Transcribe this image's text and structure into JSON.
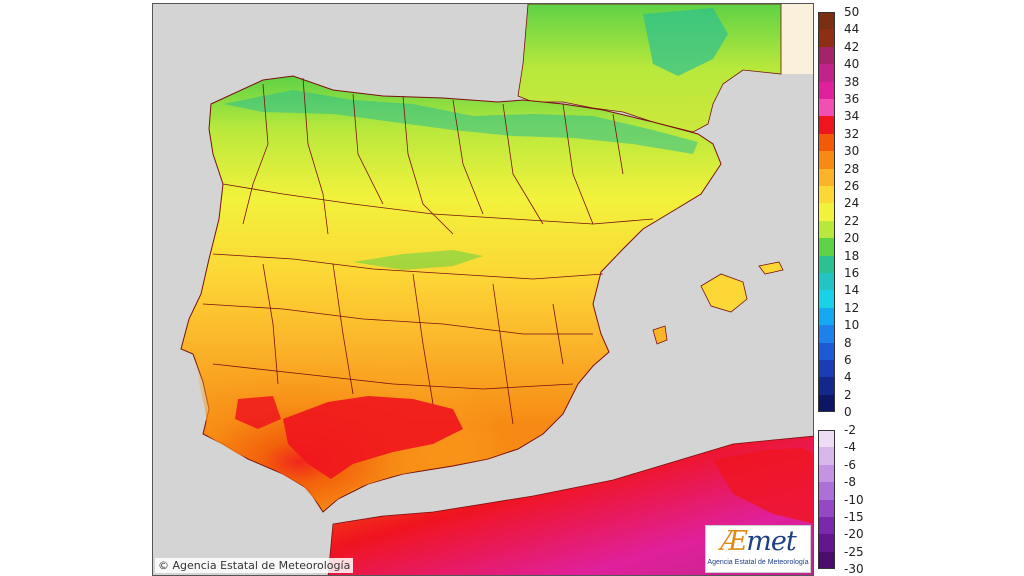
{
  "map": {
    "colors": {
      "sea": "#d4d4d4",
      "land_outside": "#fbf0dc",
      "borders": "#7a1010"
    }
  },
  "legend": {
    "positive": [
      {
        "label": "50",
        "color": "#7a2e12"
      },
      {
        "label": "44",
        "color": "#8e2f14"
      },
      {
        "label": "42",
        "color": "#a4246a"
      },
      {
        "label": "40",
        "color": "#c0248a"
      },
      {
        "label": "38",
        "color": "#e0209c"
      },
      {
        "label": "36",
        "color": "#f24fb4"
      },
      {
        "label": "34",
        "color": "#f0141e"
      },
      {
        "label": "32",
        "color": "#f25a0a"
      },
      {
        "label": "30",
        "color": "#f78a14"
      },
      {
        "label": "28",
        "color": "#fbb42a"
      },
      {
        "label": "26",
        "color": "#fcd836"
      },
      {
        "label": "24",
        "color": "#f2f23c"
      },
      {
        "label": "22",
        "color": "#b8e83c"
      },
      {
        "label": "20",
        "color": "#5ed246"
      },
      {
        "label": "18",
        "color": "#2cc092"
      },
      {
        "label": "16",
        "color": "#22c4c4"
      },
      {
        "label": "14",
        "color": "#1ad2e8"
      },
      {
        "label": "12",
        "color": "#14a8f0"
      },
      {
        "label": "10",
        "color": "#1e80ea"
      },
      {
        "label": "8",
        "color": "#1e5ad6"
      },
      {
        "label": "6",
        "color": "#1a3cb4"
      },
      {
        "label": "4",
        "color": "#14288c"
      },
      {
        "label": "2",
        "color": "#0c1664"
      },
      {
        "label": "0",
        "color": ""
      }
    ],
    "negative": [
      {
        "label": "-2",
        "color": "#ecdcf4"
      },
      {
        "label": "-4",
        "color": "#d8b8ec"
      },
      {
        "label": "-6",
        "color": "#c494e2"
      },
      {
        "label": "-8",
        "color": "#ac70d6"
      },
      {
        "label": "-10",
        "color": "#9448c4"
      },
      {
        "label": "-15",
        "color": "#7a28ac"
      },
      {
        "label": "-20",
        "color": "#62188c"
      },
      {
        "label": "-25",
        "color": "#4c0c6c"
      },
      {
        "label": "-30",
        "color": ""
      }
    ]
  },
  "copyright": "© Agencia Estatal de Meteorología",
  "logo": {
    "wordmark_a": "Æ",
    "wordmark_rest": "met",
    "subtitle": "Agencia Estatal de Meteorología"
  }
}
